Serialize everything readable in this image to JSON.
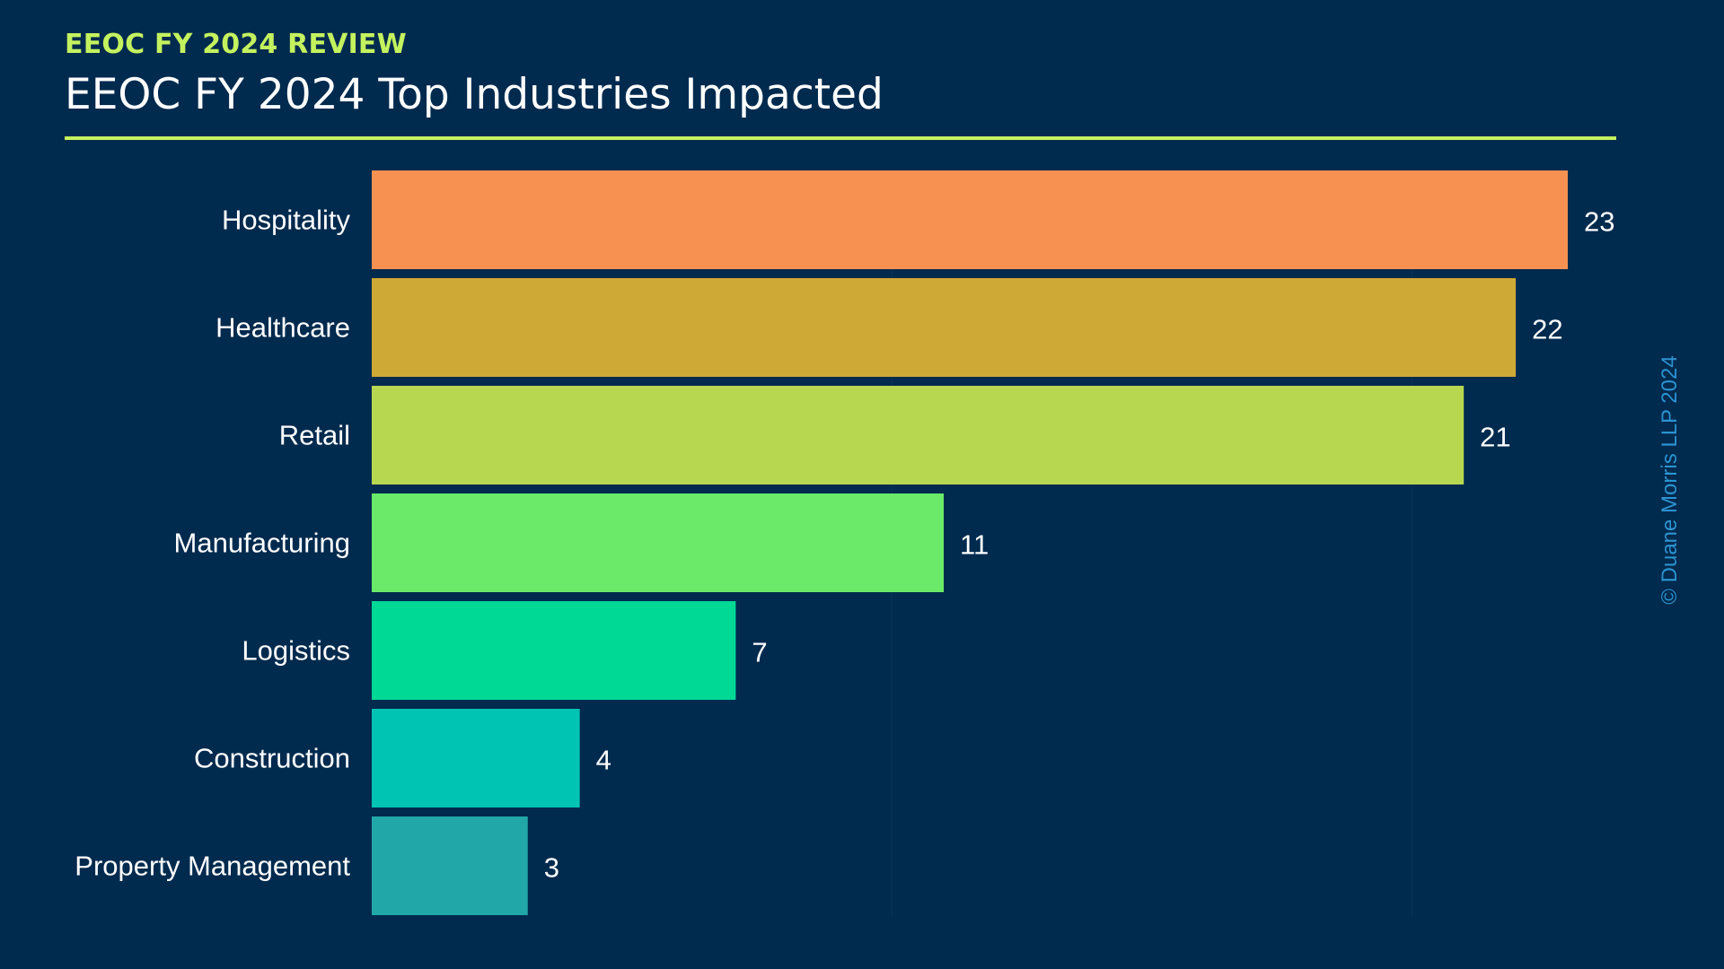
{
  "header": {
    "kicker": "EEOC FY 2024 REVIEW",
    "title": "EEOC FY 2024 Top Industries Impacted"
  },
  "credit": "© Duane Morris LLP 2024",
  "colors": {
    "background": "#002a4e",
    "accent": "#c4f25e",
    "credit": "#2c93d1"
  },
  "chart_data": {
    "type": "bar",
    "orientation": "horizontal",
    "title": "EEOC FY 2024 Top Industries Impacted",
    "xlabel": "",
    "ylabel": "",
    "categories": [
      "Hospitality",
      "Healthcare",
      "Retail",
      "Manufacturing",
      "Logistics",
      "Construction",
      "Property Management"
    ],
    "values": [
      23,
      22,
      21,
      11,
      7,
      4,
      3
    ],
    "colors": [
      "#f79152",
      "#cfa935",
      "#b8d751",
      "#6aea68",
      "#00d896",
      "#00c4b3",
      "#22a7a8"
    ],
    "xlim": [
      0,
      23
    ],
    "grid": true,
    "data_labels": true,
    "legend": "none"
  }
}
